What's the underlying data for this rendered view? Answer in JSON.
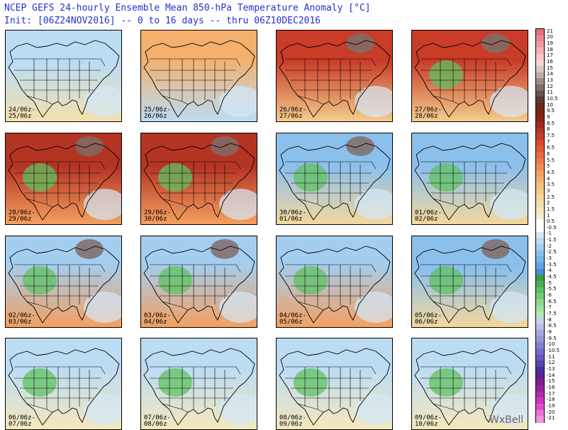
{
  "header": {
    "title": "NCEP GEFS 24-hourly Ensemble Mean 850-hPa Temperature Anomaly [°C]",
    "init": "Init: [06Z24NOV2016] -- 0 to 16 days -- thru 06Z10DEC2016"
  },
  "panels": [
    {
      "l1": "24/06z-",
      "l2": "25/06z",
      "pattern": "mild",
      "cold_canada": false,
      "green_west": false
    },
    {
      "l1": "25/06z-",
      "l2": "26/06z",
      "pattern": "warm_north",
      "cold_canada": false,
      "green_west": false
    },
    {
      "l1": "26/06z-",
      "l2": "27/06z",
      "pattern": "hot",
      "cold_canada": true,
      "green_west": false
    },
    {
      "l1": "27/06z-",
      "l2": "28/06z",
      "pattern": "hot",
      "cold_canada": true,
      "green_west": true
    },
    {
      "l1": "28/06z-",
      "l2": "29/06z",
      "pattern": "hot_east",
      "cold_canada": true,
      "green_west": true
    },
    {
      "l1": "29/06z-",
      "l2": "30/06z",
      "pattern": "hot_east",
      "cold_canada": true,
      "green_west": true
    },
    {
      "l1": "30/06z-",
      "l2": "01/06z",
      "pattern": "cool_center",
      "cold_canada": true,
      "green_west": true
    },
    {
      "l1": "01/06z-",
      "l2": "02/06z",
      "pattern": "cool_center",
      "cold_canada": false,
      "green_west": true
    },
    {
      "l1": "02/06z-",
      "l2": "03/06z",
      "pattern": "warm_south",
      "cold_canada": true,
      "green_west": true
    },
    {
      "l1": "03/06z-",
      "l2": "04/06z",
      "pattern": "warm_south",
      "cold_canada": true,
      "green_west": true
    },
    {
      "l1": "04/06z-",
      "l2": "05/06z",
      "pattern": "warm_south",
      "cold_canada": false,
      "green_west": true
    },
    {
      "l1": "05/06z-",
      "l2": "06/06z",
      "pattern": "cool_center",
      "cold_canada": true,
      "green_west": true
    },
    {
      "l1": "06/06z-",
      "l2": "07/06z",
      "pattern": "late",
      "cold_canada": false,
      "green_west": true
    },
    {
      "l1": "07/06z-",
      "l2": "08/06z",
      "pattern": "late",
      "cold_canada": false,
      "green_west": true
    },
    {
      "l1": "08/06z-",
      "l2": "09/06z",
      "pattern": "late",
      "cold_canada": false,
      "green_west": true
    },
    {
      "l1": "09/06z-",
      "l2": "10/06z",
      "pattern": "late",
      "cold_canada": false,
      "green_west": true
    }
  ],
  "colorbar": {
    "labels": [
      "21",
      "20",
      "19",
      "18",
      "17",
      "16",
      "15",
      "14",
      "13",
      "12",
      "11",
      "10.5",
      "10",
      "9.5",
      "9",
      "8.5",
      "8",
      "7.5",
      "7",
      "6.5",
      "6",
      "5.5",
      "5",
      "4.5",
      "4",
      "3.5",
      "3",
      "2.5",
      "2",
      "1.5",
      "1",
      "0.5",
      "-0.5",
      "-1",
      "-1.5",
      "-2",
      "-2.5",
      "-3",
      "-3.5",
      "-4",
      "-4.5",
      "-5",
      "-5.5",
      "-6",
      "-6.5",
      "-7",
      "-7.5",
      "-8",
      "-8.5",
      "-9",
      "-9.5",
      "-10",
      "-10.5",
      "-11",
      "-12",
      "-13",
      "-14",
      "-15",
      "-16",
      "-17",
      "-18",
      "-19",
      "-20",
      "-21"
    ],
    "colors": [
      "#e8707a",
      "#ec8890",
      "#f09aa0",
      "#f4b0b4",
      "#f8c4c8",
      "#f8d4d6",
      "#d8c8c4",
      "#c0aca8",
      "#a08c88",
      "#806c68",
      "#6c504c",
      "#5c3a30",
      "#6a2a20",
      "#7c2418",
      "#8c2014",
      "#a02a1c",
      "#b43424",
      "#c83c28",
      "#d84830",
      "#e45838",
      "#ec6840",
      "#f07848",
      "#f48c54",
      "#f4a060",
      "#f4b06c",
      "#f4c07c",
      "#f4cc8c",
      "#f4d89c",
      "#f4e0ac",
      "#f4e8bc",
      "#f4f0cc",
      "#ffffff",
      "#ffffff",
      "#d4e8f8",
      "#bcdcf4",
      "#a4cef0",
      "#8cc0ec",
      "#78b2e8",
      "#64a2e0",
      "#4c8cd8",
      "#3c9a48",
      "#4cae54",
      "#60c060",
      "#78cc74",
      "#90d88c",
      "#a4e0a0",
      "#b8e8b4",
      "#c8d0f0",
      "#b8bce8",
      "#a8a8e0",
      "#9894d8",
      "#8880d0",
      "#786cc8",
      "#6858c0",
      "#5844b0",
      "#4830a0",
      "#602090",
      "#7c2090",
      "#9820a0",
      "#b428b0",
      "#c838c0",
      "#dc50d0",
      "#ec70dc",
      "#f490e4"
    ]
  },
  "brand": "WxBell"
}
